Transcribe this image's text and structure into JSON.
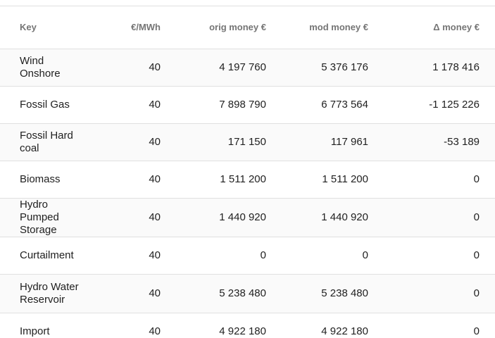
{
  "table": {
    "headers": {
      "key": "Key",
      "price": "€/MWh",
      "orig": "orig money €",
      "mod": "mod money €",
      "delta": "Δ money €"
    },
    "rows": [
      {
        "key": "Wind Onshore",
        "price": "40",
        "orig": "4 197 760",
        "mod": "5 376 176",
        "delta": "1 178 416"
      },
      {
        "key": "Fossil Gas",
        "price": "40",
        "orig": "7 898 790",
        "mod": "6 773 564",
        "delta": "-1 125 226"
      },
      {
        "key": "Fossil Hard coal",
        "price": "40",
        "orig": "171 150",
        "mod": "117 961",
        "delta": "-53 189"
      },
      {
        "key": "Biomass",
        "price": "40",
        "orig": "1 511 200",
        "mod": "1 511 200",
        "delta": "0"
      },
      {
        "key": "Hydro Pumped Storage",
        "price": "40",
        "orig": "1 440 920",
        "mod": "1 440 920",
        "delta": "0"
      },
      {
        "key": "Curtailment",
        "price": "40",
        "orig": "0",
        "mod": "0",
        "delta": "0"
      },
      {
        "key": "Hydro Water Reservoir",
        "price": "40",
        "orig": "5 238 480",
        "mod": "5 238 480",
        "delta": "0"
      },
      {
        "key": "Import",
        "price": "40",
        "orig": "4 922 180",
        "mod": "4 922 180",
        "delta": "0"
      }
    ]
  }
}
